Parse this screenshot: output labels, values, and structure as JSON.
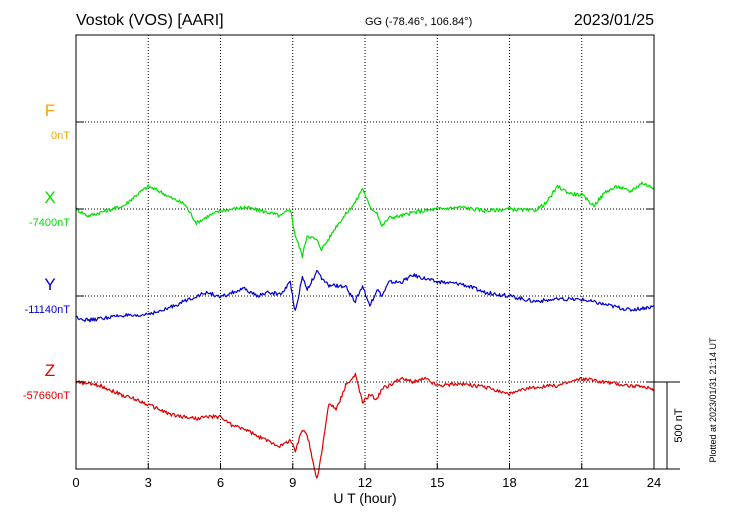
{
  "header": {
    "station": "Vostok (VOS)  [AARI]",
    "coords": "GG (-78.46°, 106.84°)",
    "date": "2023/01/25"
  },
  "side_note": "Plotted at 2023/01/31 21:14 UT",
  "scale_label": "500 nT",
  "colors": {
    "F": "#f0a800",
    "X": "#00e000",
    "Y": "#0000d0",
    "Z": "#e00000"
  },
  "chart_data": {
    "type": "line",
    "xlabel": "U T (hour)",
    "xlim": [
      0,
      24
    ],
    "xticks": [
      0,
      3,
      6,
      9,
      12,
      15,
      18,
      21,
      24
    ],
    "ylim_nT": [
      -1700,
      1700
    ],
    "scale_bar_nT": 500,
    "series": [
      {
        "name": "F",
        "base_label": "0nT",
        "base_nT": 0,
        "x": [],
        "values": []
      },
      {
        "name": "X",
        "base_label": "-7400nT",
        "base_nT": -7400,
        "x": [
          0,
          0.5,
          1,
          1.5,
          2,
          2.5,
          3,
          3.5,
          4,
          4.5,
          5,
          5.5,
          6,
          6.5,
          7,
          7.5,
          8,
          8.5,
          8.9,
          9.1,
          9.4,
          9.6,
          10,
          10.2,
          10.5,
          10.8,
          11.2,
          11.6,
          11.9,
          12.2,
          12.5,
          12.7,
          13,
          13.5,
          14,
          14.5,
          15,
          16,
          17,
          18,
          19,
          19.5,
          20,
          20.5,
          21,
          21.5,
          22,
          22.5,
          23,
          23.5,
          24
        ],
        "values": [
          0,
          -40,
          -20,
          0,
          20,
          80,
          130,
          100,
          60,
          30,
          -80,
          -40,
          -10,
          0,
          10,
          -5,
          -20,
          -40,
          0,
          -150,
          -270,
          -150,
          -180,
          -230,
          -170,
          -100,
          -30,
          40,
          120,
          10,
          -20,
          -100,
          -50,
          -40,
          -20,
          -10,
          0,
          10,
          -10,
          0,
          -10,
          30,
          130,
          90,
          80,
          20,
          100,
          130,
          100,
          150,
          120
        ]
      },
      {
        "name": "Y",
        "base_label": "-11140nT",
        "base_nT": -11140,
        "x": [
          0,
          0.5,
          1,
          1.5,
          2,
          2.5,
          3,
          3.5,
          4,
          4.5,
          5,
          5.5,
          6,
          6.5,
          7,
          7.5,
          8,
          8.5,
          8.9,
          9.1,
          9.4,
          9.6,
          10,
          10.2,
          10.5,
          10.8,
          11.2,
          11.6,
          11.9,
          12.2,
          12.5,
          12.7,
          13,
          13.5,
          14,
          14.5,
          15,
          16,
          17,
          18,
          19,
          20,
          21,
          22,
          23,
          24
        ],
        "values": [
          -120,
          -140,
          -130,
          -120,
          -110,
          -120,
          -100,
          -90,
          -60,
          -30,
          0,
          20,
          -10,
          20,
          40,
          0,
          20,
          10,
          80,
          -90,
          110,
          40,
          140,
          100,
          60,
          60,
          50,
          -30,
          60,
          -60,
          40,
          0,
          80,
          80,
          120,
          100,
          80,
          70,
          20,
          0,
          -30,
          -20,
          -20,
          -50,
          -80,
          -60
        ]
      },
      {
        "name": "Z",
        "base_label": "-57660nT",
        "base_nT": -57660,
        "x": [
          0,
          0.5,
          1,
          1.5,
          2,
          2.5,
          3,
          3.5,
          4,
          4.5,
          5,
          5.5,
          6,
          6.5,
          7,
          7.5,
          8,
          8.5,
          8.9,
          9.1,
          9.4,
          9.6,
          10,
          10.2,
          10.5,
          10.8,
          11.2,
          11.6,
          11.9,
          12.2,
          12.5,
          12.7,
          13,
          13.5,
          14,
          14.5,
          15,
          16,
          17,
          18,
          19,
          20,
          21,
          22,
          23,
          24
        ],
        "values": [
          0,
          -10,
          -20,
          -50,
          -80,
          -100,
          -130,
          -160,
          -190,
          -200,
          -210,
          -200,
          -200,
          -250,
          -270,
          -310,
          -340,
          -370,
          -330,
          -400,
          -270,
          -300,
          -560,
          -410,
          -120,
          -160,
          -20,
          40,
          -120,
          -70,
          -100,
          -40,
          -20,
          20,
          0,
          20,
          -20,
          -10,
          -30,
          -70,
          -30,
          -20,
          20,
          0,
          -20,
          -40
        ]
      }
    ]
  }
}
